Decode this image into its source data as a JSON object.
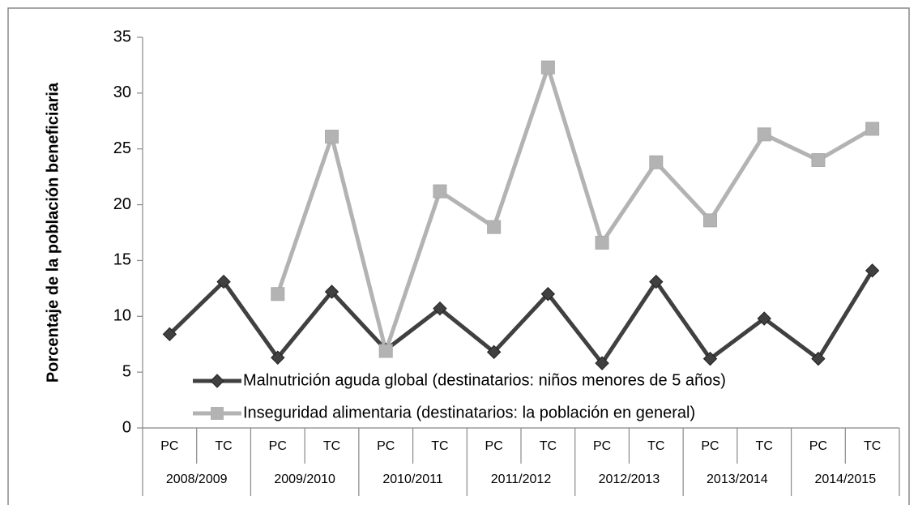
{
  "chart_data": {
    "type": "line",
    "ylabel": "Porcentaje de la población beneficiaria",
    "categories": [
      "PC",
      "TC",
      "PC",
      "TC",
      "PC",
      "TC",
      "PC",
      "TC",
      "PC",
      "TC",
      "PC",
      "TC",
      "PC",
      "TC"
    ],
    "groups": [
      "2008/2009",
      "2009/2010",
      "2010/2011",
      "2011/2012",
      "2012/2013",
      "2013/2014",
      "2014/2015"
    ],
    "series": [
      {
        "name": "Malnutrición aguda global (destinatarios: niños menores de 5 años)",
        "color": "#404040",
        "marker": "diamond",
        "values": [
          8.4,
          13.1,
          6.3,
          12.2,
          7.0,
          10.7,
          6.8,
          12.0,
          5.8,
          13.1,
          6.2,
          9.8,
          6.2,
          14.1
        ]
      },
      {
        "name": "Inseguridad alimentaria (destinatarios: la población en general)",
        "color": "#b3b3b3",
        "marker": "square",
        "values": [
          null,
          null,
          12.0,
          26.1,
          6.9,
          21.2,
          18.0,
          32.3,
          16.6,
          23.8,
          18.6,
          26.3,
          24.0,
          26.8
        ]
      }
    ],
    "ylim": [
      0,
      35
    ],
    "yticks": [
      0,
      5,
      10,
      15,
      20,
      25,
      30,
      35
    ],
    "grid": false
  }
}
